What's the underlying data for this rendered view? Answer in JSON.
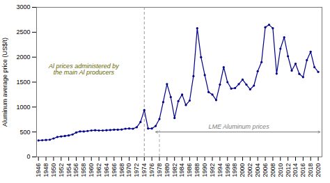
{
  "chart_data": {
    "type": "line",
    "x": [
      1946,
      1947,
      1948,
      1949,
      1950,
      1951,
      1952,
      1953,
      1954,
      1955,
      1956,
      1957,
      1958,
      1959,
      1960,
      1961,
      1962,
      1963,
      1964,
      1965,
      1966,
      1967,
      1968,
      1969,
      1970,
      1971,
      1972,
      1973,
      1974,
      1975,
      1976,
      1977,
      1978,
      1979,
      1980,
      1981,
      1982,
      1983,
      1984,
      1985,
      1986,
      1987,
      1988,
      1989,
      1990,
      1991,
      1992,
      1993,
      1994,
      1995,
      1996,
      1997,
      1998,
      1999,
      2000,
      2001,
      2002,
      2003,
      2004,
      2005,
      2006,
      2007,
      2008,
      2009,
      2010,
      2011,
      2012,
      2013,
      2014,
      2015,
      2016,
      2017,
      2018,
      2019,
      2020
    ],
    "values": [
      330,
      335,
      340,
      345,
      370,
      400,
      410,
      420,
      430,
      450,
      490,
      510,
      510,
      520,
      530,
      535,
      530,
      530,
      535,
      540,
      545,
      545,
      550,
      565,
      570,
      565,
      595,
      700,
      940,
      570,
      570,
      620,
      760,
      1100,
      1460,
      1200,
      780,
      1120,
      1250,
      1040,
      1130,
      1620,
      2580,
      2000,
      1640,
      1300,
      1250,
      1140,
      1450,
      1800,
      1500,
      1370,
      1380,
      1460,
      1550,
      1450,
      1355,
      1430,
      1720,
      1900,
      2600,
      2650,
      2580,
      1670,
      2170,
      2400,
      2020,
      1730,
      1870,
      1665,
      1600,
      1940,
      2110,
      1800,
      1705
    ],
    "color": "#00008B",
    "marker": "o",
    "ylabel": "Aluminum average price (US$/t)",
    "ylim": [
      0,
      3000
    ],
    "yticks": [
      0,
      500,
      1000,
      1500,
      2000,
      2500,
      3000
    ],
    "xlim": [
      1945.5,
      2021
    ],
    "xticks": [
      1946,
      1948,
      1950,
      1952,
      1954,
      1956,
      1958,
      1960,
      1962,
      1964,
      1966,
      1968,
      1970,
      1972,
      1974,
      1976,
      1978,
      1980,
      1982,
      1984,
      1986,
      1988,
      1990,
      1992,
      1994,
      1996,
      1998,
      2000,
      2002,
      2004,
      2006,
      2008,
      2010,
      2012,
      2014,
      2016,
      2018,
      2020
    ],
    "annotations": [
      {
        "text": "Al prices administered by\nthe main Al producers",
        "x": 1958,
        "y": 1750
      },
      {
        "text": "LME Aluminum prices",
        "x": 1999,
        "y": 560
      }
    ],
    "reference_lines": [
      {
        "x": 1974.0
      },
      {
        "x": 1978,
        "y_start": 0,
        "y_end": 530
      }
    ],
    "arrow": {
      "x_start": 1977,
      "x_end": 2020.5,
      "y": 500
    }
  }
}
